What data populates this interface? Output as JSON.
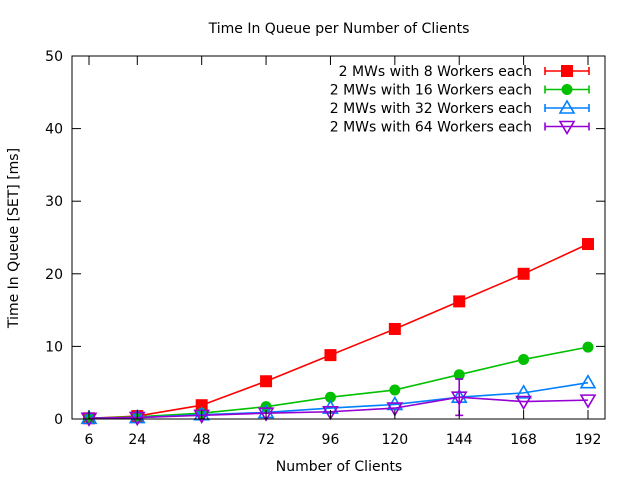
{
  "chart_data": {
    "type": "line",
    "title": "Time In Queue per Number of Clients",
    "xlabel": "Number of Clients",
    "ylabel": "Time In Queue [SET] [ms]",
    "categories": [
      6,
      24,
      48,
      72,
      96,
      120,
      144,
      168,
      192
    ],
    "xlim": [
      6,
      192
    ],
    "ylim": [
      0,
      50
    ],
    "yticks": [
      0,
      10,
      20,
      30,
      40,
      50
    ],
    "grid": false,
    "legend_position": "top-right",
    "series": [
      {
        "name": "2 MWs with 8 Workers each",
        "color": "#ff0000",
        "marker": "filled-square",
        "values": [
          0.1,
          0.4,
          1.9,
          5.2,
          8.8,
          12.4,
          16.2,
          20.0,
          24.1
        ]
      },
      {
        "name": "2 MWs with 16 Workers each",
        "color": "#00c000",
        "marker": "filled-circle",
        "values": [
          0.1,
          0.3,
          0.8,
          1.7,
          3.0,
          4.0,
          6.1,
          8.2,
          9.9
        ]
      },
      {
        "name": "2 MWs with 32 Workers each",
        "color": "#0080ff",
        "marker": "open-triangle-up",
        "values": [
          0.1,
          0.2,
          0.6,
          0.9,
          1.5,
          2.0,
          3.0,
          3.6,
          5.0
        ],
        "error": [
          0,
          0,
          0,
          0,
          0,
          0,
          0,
          0,
          0
        ]
      },
      {
        "name": "2 MWs with 64 Workers each",
        "color": "#9400d3",
        "marker": "open-triangle-down",
        "values": [
          0.1,
          0.2,
          0.5,
          0.8,
          1.0,
          1.5,
          3.0,
          2.4,
          2.6
        ],
        "error": [
          0,
          0,
          0,
          0,
          0,
          0,
          2.5,
          0,
          0
        ]
      }
    ]
  }
}
